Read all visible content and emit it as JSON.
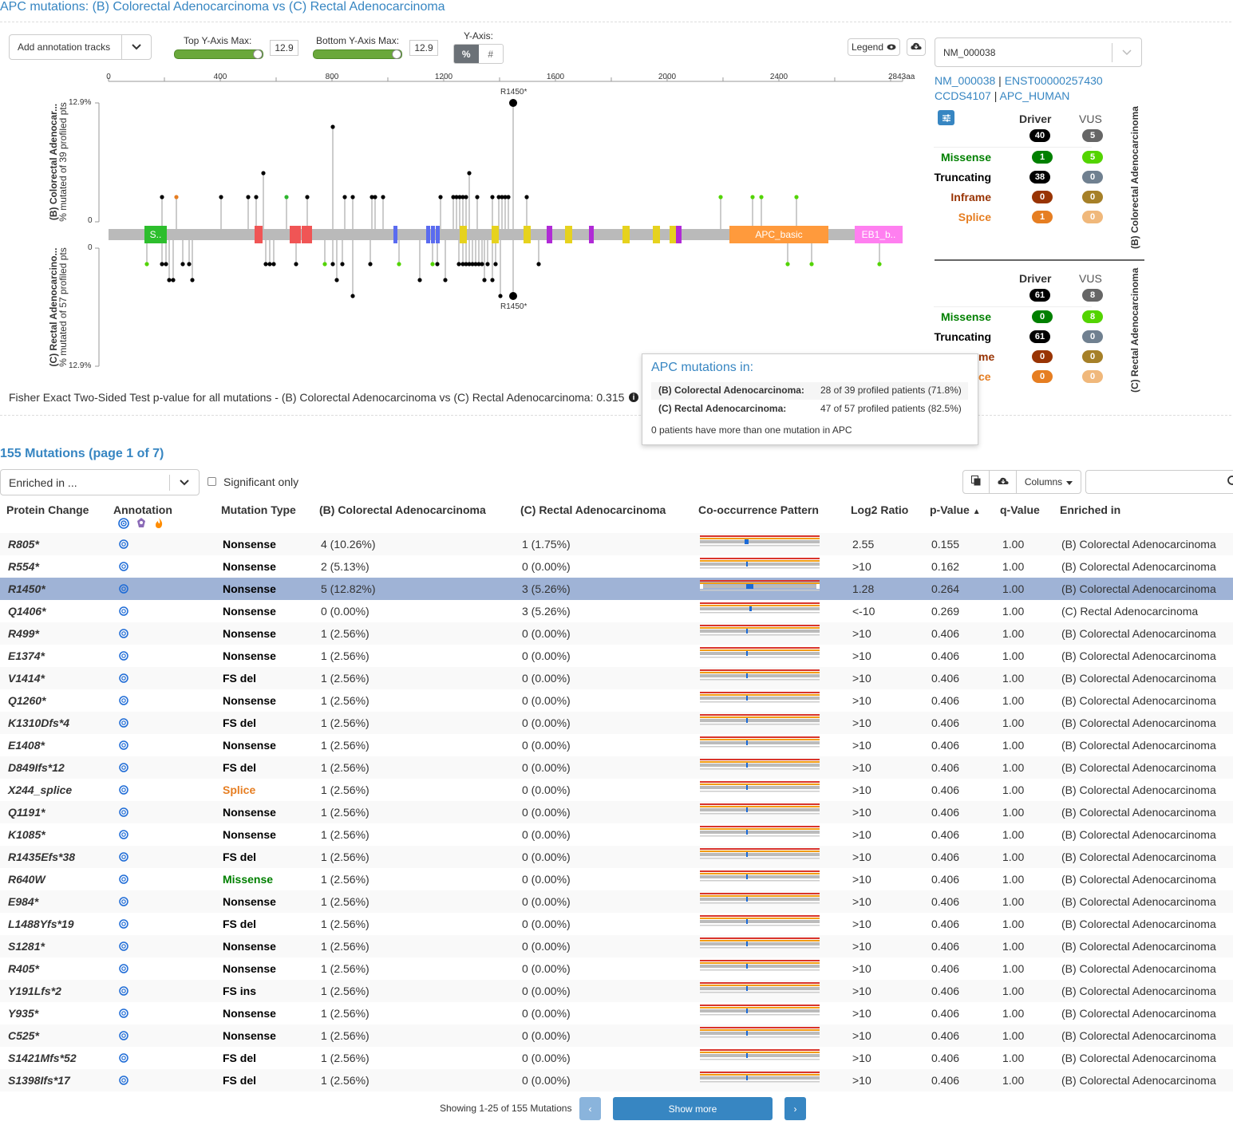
{
  "title": "APC mutations: (B) Colorectal Adenocarcinoma vs (C) Rectal Adenocarcinoma",
  "controls": {
    "annotation_tracks": "Add annotation tracks",
    "top_ymax_label": "Top Y-Axis Max:",
    "top_ymax_value": "12.9",
    "bottom_ymax_label": "Bottom Y-Axis Max:",
    "bottom_ymax_value": "12.9",
    "yaxis_label": "Y-Axis:",
    "yaxis_percent": "%",
    "yaxis_count": "#",
    "legend": "Legend",
    "transcript": "NM_000038"
  },
  "plot": {
    "x_ticks": [
      "0",
      "400",
      "800",
      "1200",
      "1600",
      "2000",
      "2400",
      "2843aa"
    ],
    "top_label_1": "(B) Colorectal Adenocar...",
    "top_label_2": "% mutated of 39 profiled pts",
    "bottom_label_1": "(C) Rectal Adenocarcino...",
    "bottom_label_2": "% mutated of 57 profiled pts",
    "top_max": "12.9%",
    "top_zero": "0",
    "bottom_zero": "0",
    "bottom_max": "12.9%",
    "hotspot_top": "R1450*",
    "hotspot_bottom": "R1450*",
    "domain_s": "S..",
    "domain_apc": "APC_basic",
    "domain_eb1": "EB1_b..",
    "fisher": "Fisher Exact Two-Sided Test p-value for all mutations - (B) Colorectal Adenocarcinoma vs (C) Rectal Adenocarcinoma: 0.315"
  },
  "transcript_links": {
    "l1": "NM_000038",
    "l2": "ENST00000257430",
    "l3": "CCDS4107",
    "l4": "APC_HUMAN",
    "sep": "|"
  },
  "summary": {
    "driver": "Driver",
    "vus": "VUS",
    "missense": "Missense",
    "truncating": "Truncating",
    "inframe": "Inframe",
    "splice": "Splice",
    "b_group": "(B) Colorectal Adenocarcinoma",
    "c_group": "(C) Rectal Adenocarcinoma",
    "b": {
      "driver_total": "40",
      "vus_total": "5",
      "mis_d": "1",
      "mis_v": "5",
      "trunc_d": "38",
      "trunc_v": "0",
      "inf_d": "0",
      "inf_v": "0",
      "spl_d": "1",
      "spl_v": "0"
    },
    "c": {
      "driver_total": "61",
      "vus_total": "8",
      "mis_d": "0",
      "mis_v": "8",
      "trunc_d": "61",
      "trunc_v": "0",
      "inf_d": "0",
      "inf_v": "0",
      "spl_d": "0",
      "spl_v": "0",
      "inf_partial": "me",
      "spl_partial": "ce"
    }
  },
  "tooltip": {
    "title": "APC mutations in:",
    "b_label": "(B) Colorectal Adenocarcinoma:",
    "b_value": "28 of 39 profiled patients (71.8%)",
    "c_label": "(C) Rectal Adenocarcinoma:",
    "c_value": "47 of 57 profiled patients (82.5%)",
    "note": "0 patients have more than one mutation in APC"
  },
  "table": {
    "heading": "155 Mutations (page 1 of 7)",
    "enriched_dd": "Enriched in ...",
    "significant_only": "Significant only",
    "columns_btn": "Columns",
    "headers": [
      "Protein Change",
      "Annotation",
      "Mutation Type",
      "(B) Colorectal Adenocarcinoma",
      "(C) Rectal Adenocarcinoma",
      "Co-occurrence Pattern",
      "Log2 Ratio",
      "p-Value",
      "q-Value",
      "Enriched in"
    ],
    "sort_arrow": "▲",
    "rows": [
      [
        "R805*",
        "Nonsense",
        "4 (10.26%)",
        "1 (1.75%)",
        "2.55",
        "0.155",
        "1.00",
        "(B) Colorectal Adenocarcinoma"
      ],
      [
        "R554*",
        "Nonsense",
        "2 (5.13%)",
        "0 (0.00%)",
        ">10",
        "0.162",
        "1.00",
        "(B) Colorectal Adenocarcinoma"
      ],
      [
        "R1450*",
        "Nonsense",
        "5 (12.82%)",
        "3 (5.26%)",
        "1.28",
        "0.264",
        "1.00",
        "(B) Colorectal Adenocarcinoma"
      ],
      [
        "Q1406*",
        "Nonsense",
        "0 (0.00%)",
        "3 (5.26%)",
        "<-10",
        "0.269",
        "1.00",
        "(C) Rectal Adenocarcinoma"
      ],
      [
        "R499*",
        "Nonsense",
        "1 (2.56%)",
        "0 (0.00%)",
        ">10",
        "0.406",
        "1.00",
        "(B) Colorectal Adenocarcinoma"
      ],
      [
        "E1374*",
        "Nonsense",
        "1 (2.56%)",
        "0 (0.00%)",
        ">10",
        "0.406",
        "1.00",
        "(B) Colorectal Adenocarcinoma"
      ],
      [
        "V1414*",
        "FS del",
        "1 (2.56%)",
        "0 (0.00%)",
        ">10",
        "0.406",
        "1.00",
        "(B) Colorectal Adenocarcinoma"
      ],
      [
        "Q1260*",
        "Nonsense",
        "1 (2.56%)",
        "0 (0.00%)",
        ">10",
        "0.406",
        "1.00",
        "(B) Colorectal Adenocarcinoma"
      ],
      [
        "K1310Dfs*4",
        "FS del",
        "1 (2.56%)",
        "0 (0.00%)",
        ">10",
        "0.406",
        "1.00",
        "(B) Colorectal Adenocarcinoma"
      ],
      [
        "E1408*",
        "Nonsense",
        "1 (2.56%)",
        "0 (0.00%)",
        ">10",
        "0.406",
        "1.00",
        "(B) Colorectal Adenocarcinoma"
      ],
      [
        "D849Ifs*12",
        "FS del",
        "1 (2.56%)",
        "0 (0.00%)",
        ">10",
        "0.406",
        "1.00",
        "(B) Colorectal Adenocarcinoma"
      ],
      [
        "X244_splice",
        "Splice",
        "1 (2.56%)",
        "0 (0.00%)",
        ">10",
        "0.406",
        "1.00",
        "(B) Colorectal Adenocarcinoma"
      ],
      [
        "Q1191*",
        "Nonsense",
        "1 (2.56%)",
        "0 (0.00%)",
        ">10",
        "0.406",
        "1.00",
        "(B) Colorectal Adenocarcinoma"
      ],
      [
        "K1085*",
        "Nonsense",
        "1 (2.56%)",
        "0 (0.00%)",
        ">10",
        "0.406",
        "1.00",
        "(B) Colorectal Adenocarcinoma"
      ],
      [
        "R1435Efs*38",
        "FS del",
        "1 (2.56%)",
        "0 (0.00%)",
        ">10",
        "0.406",
        "1.00",
        "(B) Colorectal Adenocarcinoma"
      ],
      [
        "R640W",
        "Missense",
        "1 (2.56%)",
        "0 (0.00%)",
        ">10",
        "0.406",
        "1.00",
        "(B) Colorectal Adenocarcinoma"
      ],
      [
        "E984*",
        "Nonsense",
        "1 (2.56%)",
        "0 (0.00%)",
        ">10",
        "0.406",
        "1.00",
        "(B) Colorectal Adenocarcinoma"
      ],
      [
        "L1488Yfs*19",
        "FS del",
        "1 (2.56%)",
        "0 (0.00%)",
        ">10",
        "0.406",
        "1.00",
        "(B) Colorectal Adenocarcinoma"
      ],
      [
        "S1281*",
        "Nonsense",
        "1 (2.56%)",
        "0 (0.00%)",
        ">10",
        "0.406",
        "1.00",
        "(B) Colorectal Adenocarcinoma"
      ],
      [
        "R405*",
        "Nonsense",
        "1 (2.56%)",
        "0 (0.00%)",
        ">10",
        "0.406",
        "1.00",
        "(B) Colorectal Adenocarcinoma"
      ],
      [
        "Y191Lfs*2",
        "FS ins",
        "1 (2.56%)",
        "0 (0.00%)",
        ">10",
        "0.406",
        "1.00",
        "(B) Colorectal Adenocarcinoma"
      ],
      [
        "Y935*",
        "Nonsense",
        "1 (2.56%)",
        "0 (0.00%)",
        ">10",
        "0.406",
        "1.00",
        "(B) Colorectal Adenocarcinoma"
      ],
      [
        "C525*",
        "Nonsense",
        "1 (2.56%)",
        "0 (0.00%)",
        ">10",
        "0.406",
        "1.00",
        "(B) Colorectal Adenocarcinoma"
      ],
      [
        "S1421Mfs*52",
        "FS del",
        "1 (2.56%)",
        "0 (0.00%)",
        ">10",
        "0.406",
        "1.00",
        "(B) Colorectal Adenocarcinoma"
      ],
      [
        "S1398Ifs*17",
        "FS del",
        "1 (2.56%)",
        "0 (0.00%)",
        ">10",
        "0.406",
        "1.00",
        "(B) Colorectal Adenocarcinoma"
      ]
    ],
    "footer": "Showing 1-25 of 155 Mutations",
    "show_more": "Show more",
    "prev": "‹",
    "next": "›"
  },
  "colors": {
    "nonsense": "#000000",
    "missense": "#008000",
    "splice": "#e67e22",
    "link": "#3786c2",
    "selected_row": "#9fb3d6"
  }
}
